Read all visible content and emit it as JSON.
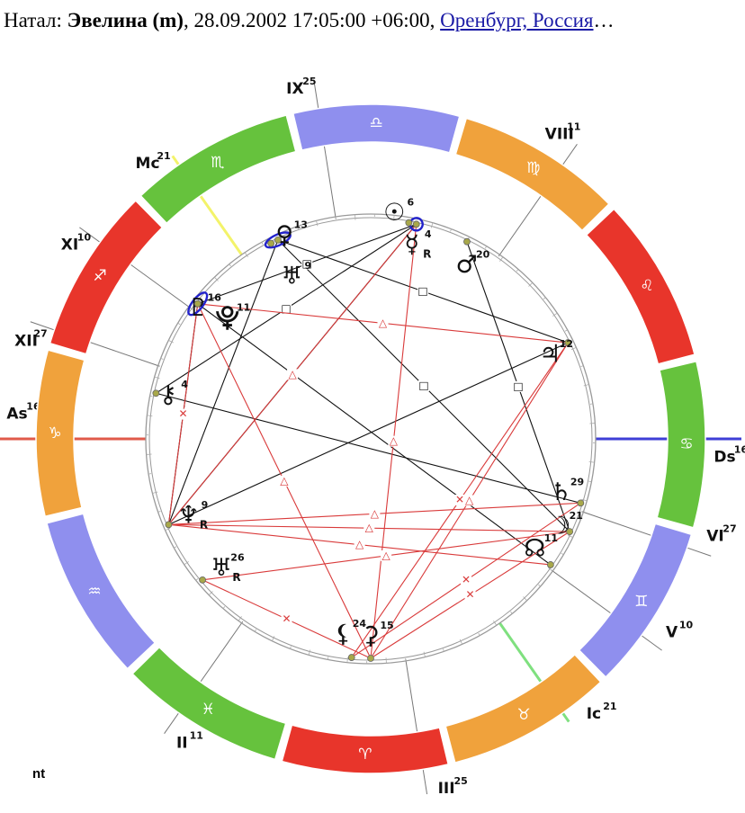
{
  "header": {
    "prefix": "Натал:",
    "name": "Эвелина (m)",
    "datetime": ", 28.09.2002 17:05:00 +06:00,",
    "location_link": "Оренбург, Россия",
    "ellipsis": "…"
  },
  "footer": {
    "text": "nt"
  },
  "colors": {
    "fire": "#e8352b",
    "earth": "#f0a23c",
    "air": "#8f8fee",
    "water": "#66c23d",
    "aspect_hard": "#111111",
    "aspect_soft": "#d93a3a",
    "asc_line": "#e05a4a",
    "dsc_line": "#3e3ed6",
    "mc_line": "#f3f36a",
    "ic_line": "#7fe07f"
  },
  "chart_data": {
    "type": "natal-chart",
    "ascendant_longitude": 286,
    "signs": [
      {
        "name": "aries",
        "glyph": "♈",
        "element": "fire"
      },
      {
        "name": "taurus",
        "glyph": "♉",
        "element": "earth"
      },
      {
        "name": "gemini",
        "glyph": "♊",
        "element": "air"
      },
      {
        "name": "cancer",
        "glyph": "♋",
        "element": "water"
      },
      {
        "name": "leo",
        "glyph": "♌",
        "element": "fire"
      },
      {
        "name": "virgo",
        "glyph": "♍",
        "element": "earth"
      },
      {
        "name": "libra",
        "glyph": "♎",
        "element": "air"
      },
      {
        "name": "scorpio",
        "glyph": "♏",
        "element": "water"
      },
      {
        "name": "sagittarius",
        "glyph": "♐",
        "element": "fire"
      },
      {
        "name": "capricorn",
        "glyph": "♑",
        "element": "earth"
      },
      {
        "name": "aquarius",
        "glyph": "♒",
        "element": "air"
      },
      {
        "name": "pisces",
        "glyph": "♓",
        "element": "water"
      }
    ],
    "axes": [
      {
        "id": "as",
        "label": "As",
        "degree": "16",
        "longitude": 286,
        "color_key": "asc_line"
      },
      {
        "id": "ds",
        "label": "Ds",
        "degree": "16",
        "longitude": 106,
        "color_key": "dsc_line"
      },
      {
        "id": "mc",
        "label": "Mc",
        "degree": "21",
        "longitude": 231,
        "color_key": "mc_line"
      },
      {
        "id": "ic",
        "label": "Ic",
        "degree": "21",
        "longitude": 51,
        "color_key": "ic_line"
      }
    ],
    "houses": [
      {
        "label": "II",
        "degree": "11",
        "longitude": 341
      },
      {
        "label": "III",
        "degree": "25",
        "longitude": 25
      },
      {
        "label": "V",
        "degree": "10",
        "longitude": 70
      },
      {
        "label": "VI",
        "degree": "27",
        "longitude": 87
      },
      {
        "label": "VIII",
        "degree": "11",
        "longitude": 161
      },
      {
        "label": "IX",
        "degree": "25",
        "longitude": 205
      },
      {
        "label": "XI",
        "degree": "10",
        "longitude": 250
      },
      {
        "label": "XII",
        "degree": "27",
        "longitude": 267
      }
    ],
    "planets": [
      {
        "id": "sun",
        "glyph": "☉",
        "degree": "6",
        "retro": "",
        "longitude": 186,
        "label_r": 252,
        "label_longitude": 190
      },
      {
        "id": "mercury",
        "glyph": "☿",
        "degree": "4",
        "retro": "R",
        "longitude": 184,
        "label_r": 220,
        "label_longitude": 184
      },
      {
        "id": "mars",
        "glyph": "♂",
        "degree": "20",
        "retro": "",
        "longitude": 170,
        "label_r": 220,
        "label_longitude": 167
      },
      {
        "id": "venus",
        "glyph": "♀",
        "degree": "13",
        "retro": "",
        "longitude": 223,
        "label_r": 245,
        "label_longitude": 219
      },
      {
        "id": "uranus",
        "glyph": "♅",
        "degree": "26",
        "retro": "R",
        "longitude": 326,
        "label_r": 220,
        "label_longitude": 327
      },
      {
        "id": "jupiter",
        "glyph": "♃",
        "degree": "12",
        "retro": "",
        "longitude": 132,
        "label_r": 220,
        "label_longitude": 131
      },
      {
        "id": "saturn",
        "glyph": "♄",
        "degree": "29",
        "retro": "",
        "longitude": 89,
        "label_r": 220,
        "label_longitude": 90
      },
      {
        "id": "moon",
        "glyph": "☽",
        "degree": "21",
        "retro": "",
        "longitude": 81,
        "label_r": 232,
        "label_longitude": 81
      },
      {
        "id": "node",
        "glyph": "☊",
        "degree": "11",
        "retro": "",
        "longitude": 71,
        "label_r": 220,
        "label_longitude": 72
      },
      {
        "id": "ceres",
        "glyph": "⚳",
        "degree": "15",
        "retro": "",
        "longitude": 16,
        "label_r": 220,
        "label_longitude": 16
      },
      {
        "id": "lilith",
        "glyph": "⚸",
        "degree": "24",
        "retro": "",
        "longitude": 11,
        "label_r": 220,
        "label_longitude": 8
      },
      {
        "id": "neptune",
        "glyph": "♆",
        "degree": "9",
        "retro": "R",
        "longitude": 309,
        "label_r": 220,
        "label_longitude": 309
      },
      {
        "id": "chiron",
        "glyph": "⚷",
        "degree": "4",
        "retro": "",
        "longitude": 274,
        "label_r": 230,
        "label_longitude": 274
      },
      {
        "id": "pluto",
        "glyph": "♇",
        "degree": "16",
        "retro": "",
        "longitude": 248,
        "label_r": 240,
        "label_longitude": 249
      },
      {
        "id": "pluto-asteroid",
        "glyph": "⯓",
        "degree": "11",
        "retro": "",
        "longitude": 248,
        "label_r": 208,
        "label_longitude": 246
      },
      {
        "id": "neptune-house",
        "glyph": "♅",
        "degree": "9",
        "retro": "",
        "longitude": 221,
        "label_r": 200,
        "label_longitude": 222
      }
    ],
    "conjunction_ovals": [
      {
        "id": "mercury-oval",
        "longitude": 184
      },
      {
        "id": "uranus-oval",
        "longitude": 221
      },
      {
        "id": "pluto-oval",
        "longitude": 248
      }
    ],
    "aspects": [
      {
        "from": "neptune",
        "to": "uranus-oval",
        "kind": "hard",
        "glyph": ""
      },
      {
        "from": "neptune",
        "to": "mercury",
        "kind": "hard",
        "glyph": ""
      },
      {
        "from": "neptune",
        "to": "jupiter",
        "kind": "hard",
        "glyph": ""
      },
      {
        "from": "neptune",
        "to": "pluto",
        "kind": "hard",
        "glyph": "□"
      },
      {
        "from": "uranus-oval",
        "to": "jupiter",
        "kind": "hard",
        "glyph": "□"
      },
      {
        "from": "uranus-oval",
        "to": "moon",
        "kind": "hard",
        "glyph": "□"
      },
      {
        "from": "pluto",
        "to": "mercury",
        "kind": "hard",
        "glyph": "□"
      },
      {
        "from": "pluto",
        "to": "node",
        "kind": "hard",
        "glyph": ""
      },
      {
        "from": "chiron",
        "to": "saturn",
        "kind": "hard",
        "glyph": ""
      },
      {
        "from": "chiron",
        "to": "mercury",
        "kind": "hard",
        "glyph": "□"
      },
      {
        "from": "mars",
        "to": "moon",
        "kind": "hard",
        "glyph": "□"
      },
      {
        "from": "pluto",
        "to": "jupiter",
        "kind": "soft",
        "glyph": "△"
      },
      {
        "from": "pluto",
        "to": "ceres",
        "kind": "soft",
        "glyph": "△"
      },
      {
        "from": "pluto",
        "to": "neptune",
        "kind": "soft",
        "glyph": "✕"
      },
      {
        "from": "mercury",
        "to": "ceres",
        "kind": "soft",
        "glyph": "△"
      },
      {
        "from": "mercury",
        "to": "neptune",
        "kind": "soft",
        "glyph": "△"
      },
      {
        "from": "jupiter",
        "to": "ceres",
        "kind": "soft",
        "glyph": "△"
      },
      {
        "from": "jupiter",
        "to": "lilith",
        "kind": "soft",
        "glyph": "✕"
      },
      {
        "from": "neptune",
        "to": "saturn",
        "kind": "soft",
        "glyph": "△"
      },
      {
        "from": "neptune",
        "to": "moon",
        "kind": "soft",
        "glyph": "△"
      },
      {
        "from": "neptune",
        "to": "node",
        "kind": "soft",
        "glyph": "△"
      },
      {
        "from": "uranus",
        "to": "moon",
        "kind": "soft",
        "glyph": "△"
      },
      {
        "from": "uranus",
        "to": "ceres",
        "kind": "soft",
        "glyph": "✕"
      },
      {
        "from": "ceres",
        "to": "moon",
        "kind": "soft",
        "glyph": "✕"
      },
      {
        "from": "lilith",
        "to": "saturn",
        "kind": "soft",
        "glyph": "✕"
      }
    ]
  }
}
